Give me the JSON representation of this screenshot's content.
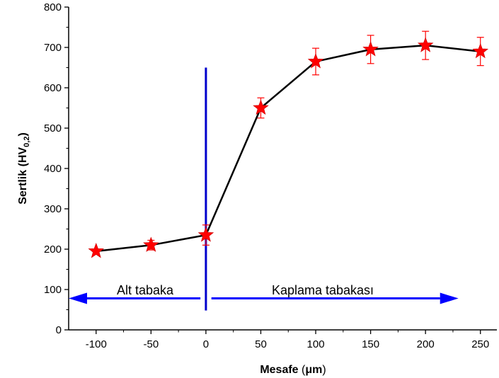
{
  "chart_data": {
    "type": "line",
    "title": "",
    "xlabel": {
      "main": "Mesafe",
      "unit": "μm"
    },
    "ylabel": {
      "main": "Sertlik",
      "unit_base": "HV",
      "unit_sub": "0,2"
    },
    "xlim": [
      -125,
      265
    ],
    "ylim": [
      0,
      800
    ],
    "x_ticks": [
      -100,
      -50,
      0,
      50,
      100,
      150,
      200,
      250
    ],
    "y_ticks": [
      0,
      100,
      200,
      300,
      400,
      500,
      600,
      700,
      800
    ],
    "grid": false,
    "series": [
      {
        "x": [
          -100,
          -50,
          0,
          50,
          100,
          150,
          200,
          250
        ],
        "y": [
          195,
          210,
          235,
          550,
          665,
          695,
          705,
          690
        ],
        "error": [
          0,
          12,
          25,
          25,
          33,
          35,
          35,
          35
        ],
        "line_color": "#000000",
        "marker": "star",
        "marker_color": "#ff0000",
        "error_color": "#ff0000"
      }
    ],
    "annotations": {
      "left_region": "Alt tabaka",
      "right_region": "Kaplama tabakası",
      "divider_color": "#0000cc",
      "arrow_color": "#0000ff",
      "divider_x": 0,
      "divider_y_top": 650,
      "divider_y_bottom": 48,
      "left_arrow_x_from": -5,
      "left_arrow_x_to": -125,
      "left_arrow_y": 78,
      "right_arrow_x_from": 5,
      "right_arrow_x_to": 230,
      "right_arrow_y": 78
    }
  }
}
